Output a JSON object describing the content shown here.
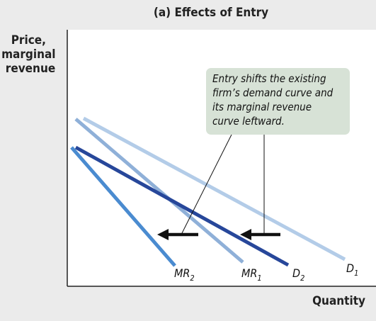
{
  "figure": {
    "title": "(a) Effects of Entry",
    "y_axis_label": [
      "Price,",
      "marginal",
      "revenue"
    ],
    "x_axis_label": "Quantity",
    "annotation": [
      "Entry shifts the existing",
      "firm’s demand curve and",
      "its marginal revenue",
      "curve leftward."
    ],
    "curves": [
      {
        "id": "D1",
        "label_main": "D",
        "label_sub": "1",
        "color": "#b3cce8"
      },
      {
        "id": "MR1",
        "label_main": "MR",
        "label_sub": "1",
        "color": "#8fb0d8"
      },
      {
        "id": "D2",
        "label_main": "D",
        "label_sub": "2",
        "color": "#27479a"
      },
      {
        "id": "MR2",
        "label_main": "MR",
        "label_sub": "2",
        "color": "#4a8bd0"
      }
    ],
    "colors": {
      "background": "#ebebeb",
      "plot_background": "#ffffff",
      "annotation_box": "#d7e2d6",
      "arrow": "#111111"
    }
  }
}
